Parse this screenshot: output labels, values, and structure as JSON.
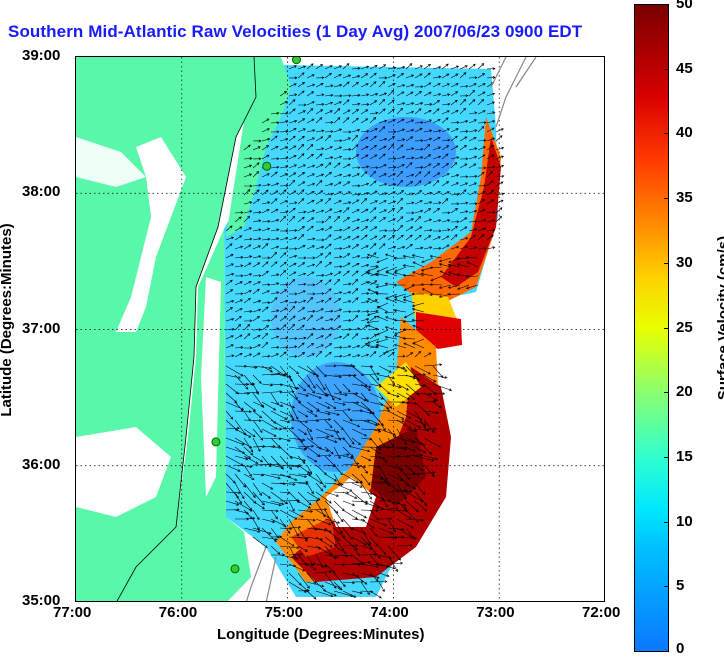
{
  "title": "Southern Mid-Atlantic Raw Velocities (1 Day Avg) 2007/06/23 0900 EDT",
  "xlabel": "Longitude (Degrees:Minutes)",
  "ylabel": "Latitude (Degrees:Minutes)",
  "x_ticks": [
    "77:00",
    "76:00",
    "75:00",
    "74:00",
    "73:00",
    "72:00"
  ],
  "y_ticks": [
    "39:00",
    "38:00",
    "37:00",
    "36:00",
    "35:00"
  ],
  "colorbar": {
    "label": "Surface Velocity (cm/s)",
    "ticks": [
      "50",
      "45",
      "40",
      "35",
      "30",
      "25",
      "20",
      "15",
      "10",
      "5",
      "0"
    ],
    "min": 0,
    "max": 50
  },
  "colors": {
    "land": "#58f7a9",
    "water_outside": "#ffffff",
    "title": "#1a1aff",
    "slow": "#3aa8ff",
    "fast": "#8a0000",
    "station": "#33cc33"
  },
  "stations": [
    {
      "lon": -74.92,
      "lat": 38.98
    },
    {
      "lon": -75.2,
      "lat": 38.2
    },
    {
      "lon": -75.68,
      "lat": 36.18
    },
    {
      "lon": -75.5,
      "lat": 35.25
    }
  ]
}
